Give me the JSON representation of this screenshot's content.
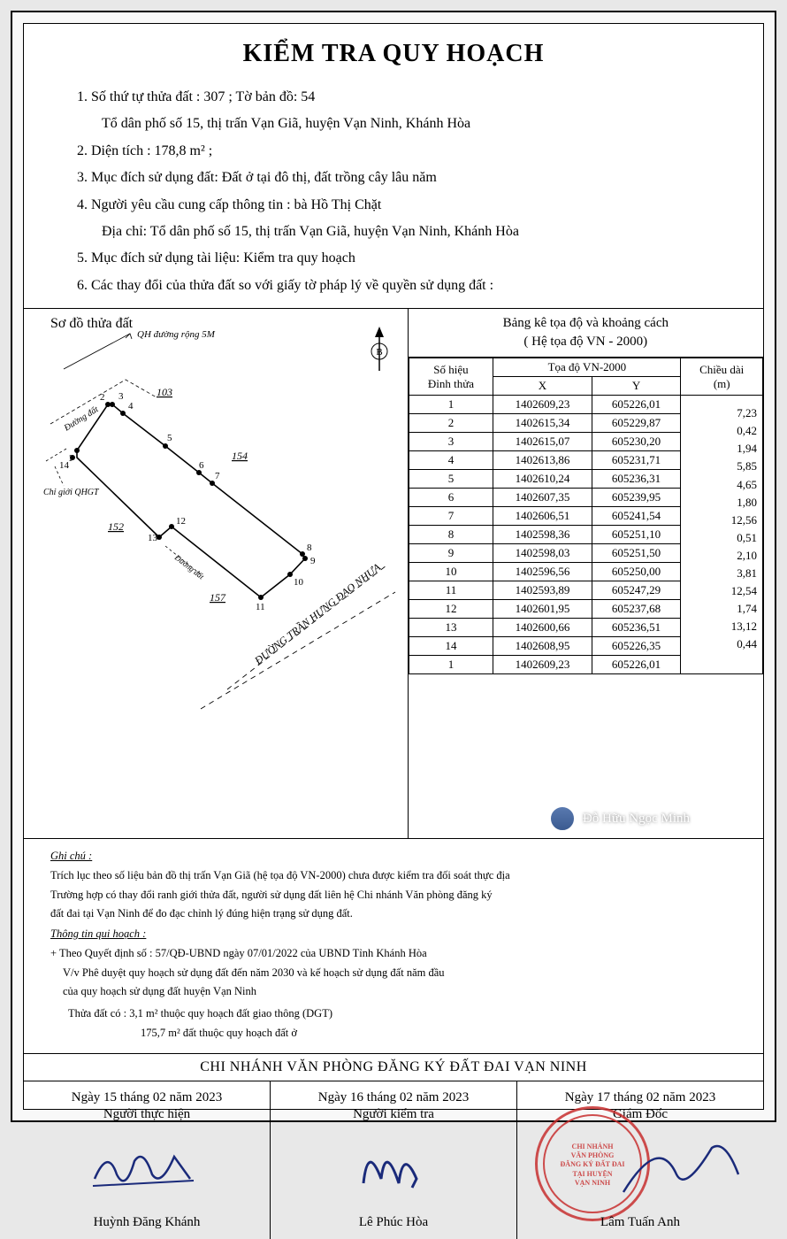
{
  "title": "KIỂM TRA QUY HOẠCH",
  "info": {
    "line1a": "1. Số thứ tự thửa đất :  307 ;  Tờ bản đồ:  54",
    "line1b": "Tổ dân phố số 15, thị trấn Vạn Giã, huyện Vạn Ninh, Khánh Hòa",
    "line2": "2. Diện tích :  178,8  m² ;",
    "line3": "3. Mục đích sử dụng đất: Đất ở tại đô thị, đất trồng cây lâu năm",
    "line4a": "4. Người yêu cầu cung cấp thông tin : bà Hồ Thị Chặt",
    "line4b": "Địa chỉ: Tổ dân phố số 15, thị trấn Vạn Giã, huyện Vạn Ninh, Khánh Hòa",
    "line5": "5. Mục đích sử dụng tài liệu: Kiểm tra quy hoạch",
    "line6": "6. Các thay đổi của thửa đất so với giấy tờ pháp lý về quyền sử dụng đất :"
  },
  "diagram_title": "Sơ đồ thửa đất",
  "diagram_labels": {
    "qh": "QH đường rộng 5M",
    "duongdat": "Đường đất",
    "chigioi": "Chỉ giới QHGT",
    "p103": "103",
    "p154": "154",
    "p152": "152",
    "p157": "157",
    "street": "ĐƯỜNG TRẦN HƯNG ĐẠO NHỰA",
    "compass": "B"
  },
  "node_labels": [
    "1",
    "2",
    "3",
    "4",
    "5",
    "6",
    "7",
    "8",
    "9",
    "10",
    "11",
    "12",
    "13",
    "14"
  ],
  "table_title1": "Bảng kê tọa độ và khoảng cách",
  "table_title2": "( Hệ tọa độ VN - 2000)",
  "thead": {
    "c1a": "Số hiệu",
    "c1b": "Đỉnh thửa",
    "c2": "Tọa độ VN-2000",
    "c2x": "X",
    "c2y": "Y",
    "c3a": "Chiều dài",
    "c3b": "(m)"
  },
  "rows": [
    {
      "n": "1",
      "x": "1402609,23",
      "y": "605226,01",
      "d": "7,23"
    },
    {
      "n": "2",
      "x": "1402615,34",
      "y": "605229,87",
      "d": "0,42"
    },
    {
      "n": "3",
      "x": "1402615,07",
      "y": "605230,20",
      "d": "1,94"
    },
    {
      "n": "4",
      "x": "1402613,86",
      "y": "605231,71",
      "d": "5,85"
    },
    {
      "n": "5",
      "x": "1402610,24",
      "y": "605236,31",
      "d": "4,65"
    },
    {
      "n": "6",
      "x": "1402607,35",
      "y": "605239,95",
      "d": "1,80"
    },
    {
      "n": "7",
      "x": "1402606,51",
      "y": "605241,54",
      "d": "12,56"
    },
    {
      "n": "8",
      "x": "1402598,36",
      "y": "605251,10",
      "d": "0,51"
    },
    {
      "n": "9",
      "x": "1402598,03",
      "y": "605251,50",
      "d": "2,10"
    },
    {
      "n": "10",
      "x": "1402596,56",
      "y": "605250,00",
      "d": "3,81"
    },
    {
      "n": "11",
      "x": "1402593,89",
      "y": "605247,29",
      "d": "12,54"
    },
    {
      "n": "12",
      "x": "1402601,95",
      "y": "605237,68",
      "d": "1,74"
    },
    {
      "n": "13",
      "x": "1402600,66",
      "y": "605236,51",
      "d": "13,12"
    },
    {
      "n": "14",
      "x": "1402608,95",
      "y": "605226,35",
      "d": "0,44"
    },
    {
      "n": "1",
      "x": "1402609,23",
      "y": "605226,01",
      "d": ""
    }
  ],
  "notes": {
    "ghichu": "Ghi chú :",
    "n1": "Trích lục theo số liệu bản đồ thị trấn Vạn Giã (hệ tọa độ VN-2000) chưa được kiểm tra đối soát thực địa",
    "n2": "Trường hợp có thay đổi ranh giới thửa đất, người sử dụng đất liên hệ Chi nhánh Văn phòng đăng ký",
    "n3": "đất đai tại Vạn Ninh để đo đạc chỉnh lý đúng hiện trạng sử dụng đất.",
    "tt": "Thông tin qui hoạch :",
    "q1": "+ Theo Quyết định số : 57/QĐ-UBND ngày 07/01/2022 của UBND Tỉnh Khánh Hòa",
    "q2": "V/v Phê duyệt quy hoạch sử dụng đất đến năm 2030 và kế hoạch sử dụng đất năm đầu",
    "q3": "của quy hoạch sử dụng đất huyện Vạn Ninh",
    "t1": "Thửa đất có :   3,1 m² thuộc quy hoạch đất giao thông (DGT)",
    "t2": "175,7 m² đất thuộc quy hoạch đất ở"
  },
  "office": "CHI NHÁNH VĂN PHÒNG ĐĂNG KÝ ĐẤT ĐAI VẠN NINH",
  "sigs": {
    "s1_date": "Ngày 15 tháng 02 năm  2023",
    "s1_role": "Người thực hiện",
    "s1_name": "Huỳnh Đăng Khánh",
    "s2_date": "Ngày 16 tháng  02 năm  2023",
    "s2_role": "Người kiểm tra",
    "s2_name": "Lê Phúc Hòa",
    "s3_date": "Ngày 17 tháng 02 năm  2023",
    "s3_role": "Giám Đốc",
    "s3_name": "Lâm Tuấn Anh"
  },
  "stamp": {
    "l1": "CHI NHÁNH",
    "l2": "VĂN PHÒNG",
    "l3": "ĐĂNG KÝ ĐẤT ĐAI",
    "l4": "TẠI HUYỆN",
    "l5": "VẠN NINH"
  },
  "watermark": "Đỗ Hữu Ngọc Minh"
}
